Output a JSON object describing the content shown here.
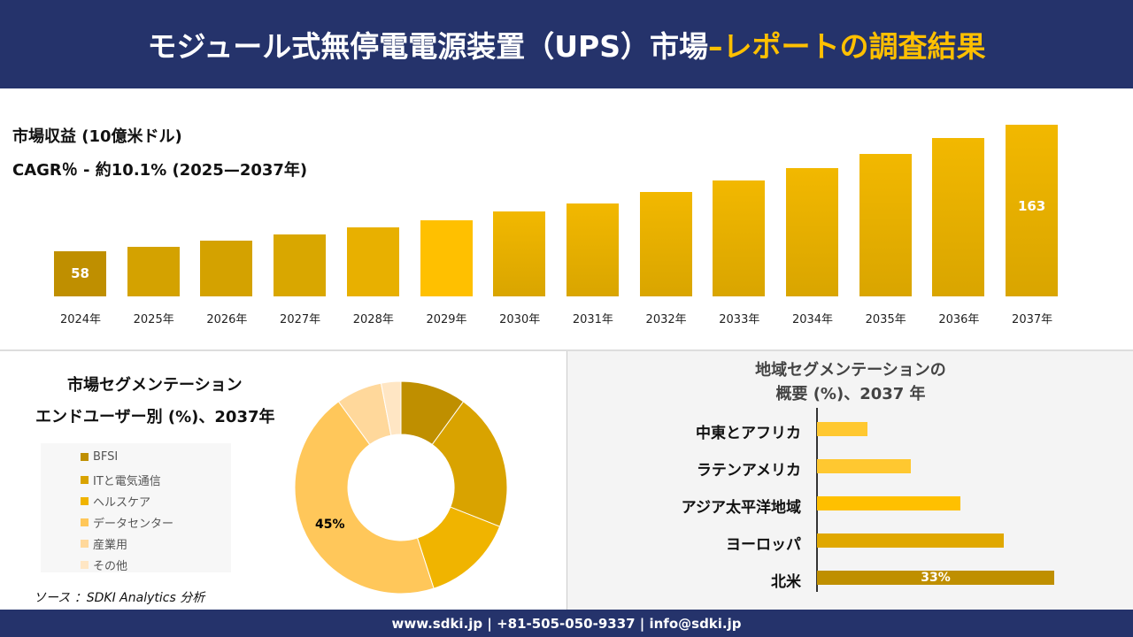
{
  "header": {
    "title_main": "モジュール式無停電電源装置（UPS）市場 ",
    "title_highlight": "–レポートの調査結果"
  },
  "chart_data": [
    {
      "type": "bar",
      "title": "市場収益 (10億米ドル)",
      "subtitle": "CAGR％ - 約10.1% (2025—2037年)",
      "categories": [
        "2024年",
        "2025年",
        "2026年",
        "2027年",
        "2028年",
        "2029年",
        "2030年",
        "2031年",
        "2032年",
        "2033年",
        "2034年",
        "2035年",
        "2036年",
        "2037年"
      ],
      "values": [
        58,
        62,
        67,
        72,
        78,
        84,
        91,
        98,
        107,
        117,
        127,
        139,
        152,
        163
      ],
      "data_labels": {
        "0": "58",
        "13": "163"
      },
      "colors": [
        "#bf8f00",
        "#d4a200",
        "#d4a200",
        "#d9a700",
        "#e8b000",
        "#ffc000",
        "#f2b800",
        "#f2b800",
        "#f2b800",
        "#f2b800",
        "#f2b800",
        "#f2b800",
        "#f2b800",
        "#f2b800"
      ]
    },
    {
      "type": "pie",
      "title": "市場セグメンテーション",
      "subtitle": "エンドユーザー別 (%)、2037年",
      "categories": [
        "BFSI",
        "ITと電気通信",
        "ヘルスケア",
        "データセンター",
        "産業用",
        "その他"
      ],
      "values": [
        10,
        21,
        14,
        45,
        7,
        3
      ],
      "colors": [
        "#bf8f00",
        "#d9a300",
        "#f0b400",
        "#ffc75a",
        "#ffd89b",
        "#ffe6c4"
      ],
      "data_labels": {
        "3": "45%"
      }
    },
    {
      "type": "bar",
      "orientation": "horizontal",
      "title": "地域セグメンテーションの",
      "subtitle": "概要 (%)、2037 年",
      "categories": [
        "中東とアフリカ",
        "ラテンアメリカ",
        "アジア太平洋地域",
        "ヨーロッパ",
        "北米"
      ],
      "values": [
        7,
        13,
        20,
        26,
        33
      ],
      "colors": [
        "#ffc830",
        "#ffc830",
        "#ffc000",
        "#e0a800",
        "#bf8f00"
      ],
      "data_labels": {
        "4": "33%"
      }
    }
  ],
  "source": "ソース ：SDKI Analytics 分析",
  "footer": "www.sdki.jp | +81-505-050-9337 | info@sdki.jp"
}
